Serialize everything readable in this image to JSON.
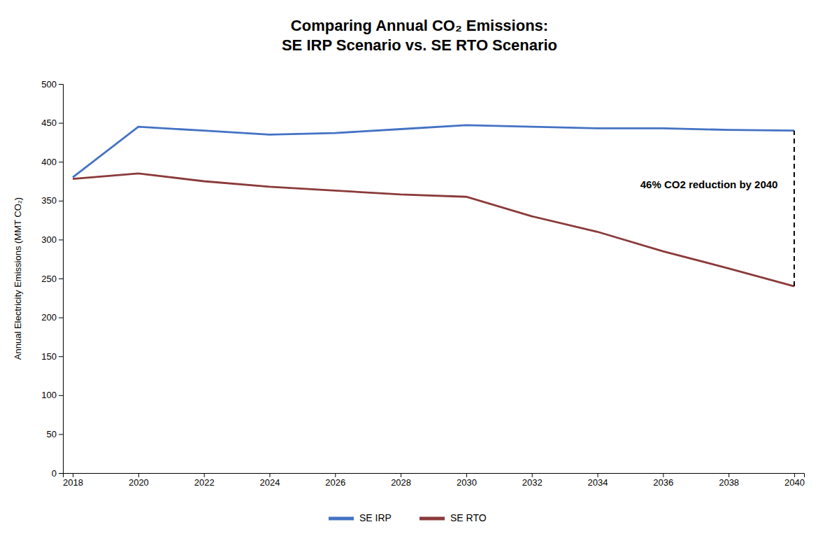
{
  "chart_data": {
    "type": "line",
    "title": "Comparing Annual CO₂ Emissions:\nSE IRP Scenario vs. SE RTO Scenario",
    "y_label": "Annual Electricity Emissions (MMT CO₂)",
    "x": [
      2018,
      2020,
      2022,
      2024,
      2026,
      2028,
      2030,
      2032,
      2034,
      2036,
      2038,
      2040
    ],
    "series": [
      {
        "name": "SE IRP",
        "color": "#4472C4",
        "values": [
          380,
          445,
          440,
          435,
          437,
          442,
          447,
          445,
          443,
          443,
          441,
          440
        ]
      },
      {
        "name": "SE RTO",
        "color": "#8B3A3A",
        "values": [
          378,
          385,
          375,
          368,
          363,
          358,
          355,
          330,
          310,
          285,
          263,
          240
        ]
      }
    ],
    "xlim": [
      2017.7,
      2040.3
    ],
    "xticks": [
      2018,
      2020,
      2022,
      2024,
      2026,
      2028,
      2030,
      2032,
      2034,
      2036,
      2038,
      2040
    ],
    "ylim": [
      0,
      500
    ],
    "yticks": [
      0,
      50,
      100,
      150,
      200,
      250,
      300,
      350,
      400,
      450,
      500
    ],
    "annotations": [
      {
        "text": "46% CO2 reduction by 2040",
        "x": 2039.5,
        "y": 370
      }
    ],
    "grid": false,
    "legend": "bottom"
  }
}
